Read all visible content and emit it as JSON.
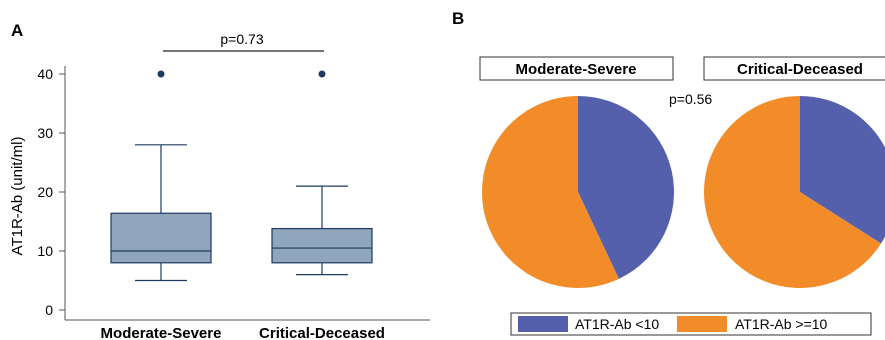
{
  "colors": {
    "box_fill": "#8fa6bd",
    "box_stroke": "#1f3a5f",
    "outlier": "#1f3a5f",
    "pie_low": "#5560ad",
    "pie_high": "#f28c28"
  },
  "chart_data": [
    {
      "panel": "A",
      "type": "box",
      "ylabel": "AT1R-Ab (unit/ml)",
      "ylim": [
        0,
        40
      ],
      "yticks": [
        0,
        10,
        20,
        30,
        40
      ],
      "categories": [
        "Moderate-Severe",
        "Critical-Deceased"
      ],
      "boxes": [
        {
          "name": "Moderate-Severe",
          "whisker_low": 5,
          "q1": 8,
          "median": 10,
          "q3": 16.4,
          "whisker_high": 28,
          "outliers": [
            40
          ]
        },
        {
          "name": "Critical-Deceased",
          "whisker_low": 6,
          "q1": 8,
          "median": 10.5,
          "q3": 13.8,
          "whisker_high": 21,
          "outliers": [
            40
          ]
        }
      ],
      "annotation": "p=0.73"
    },
    {
      "panel": "B",
      "type": "pie",
      "annotation": "p=0.56",
      "legend": [
        "AT1R-Ab <10",
        "AT1R-Ab >=10"
      ],
      "pies": [
        {
          "title": "Moderate-Severe",
          "values": [
            43,
            57
          ]
        },
        {
          "title": "Critical-Deceased",
          "values": [
            34,
            66
          ]
        }
      ]
    }
  ]
}
